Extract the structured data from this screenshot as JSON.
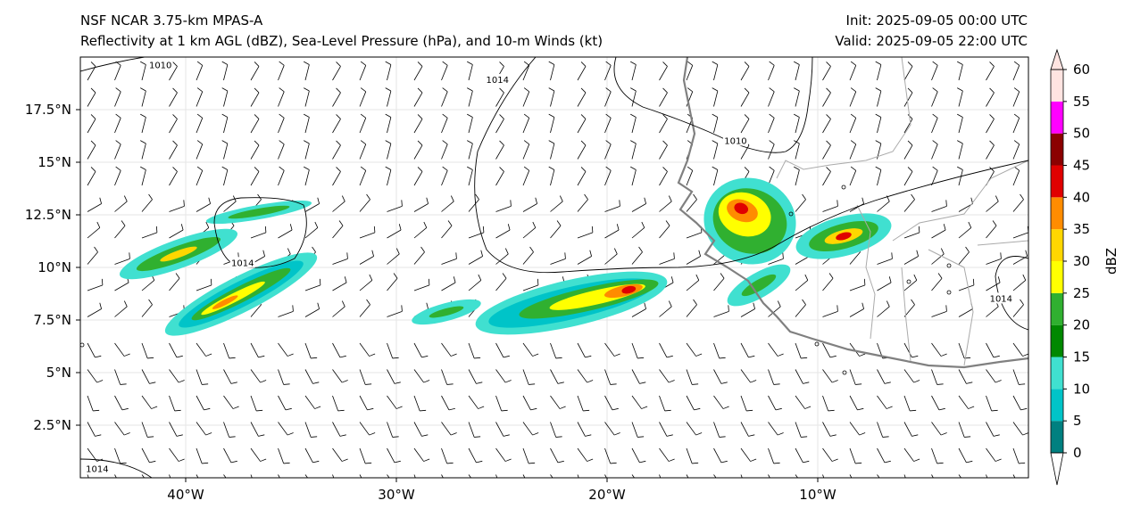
{
  "header": {
    "model": "NSF NCAR 3.75-km MPAS-A",
    "fields": "Reflectivity at 1 km AGL (dBZ), Sea-Level Pressure (hPa), and 10-m Winds (kt)",
    "init": "Init: 2025-09-05 00:00 UTC",
    "valid": "Valid: 2025-09-05 22:00 UTC"
  },
  "map": {
    "lon_range": [
      -45,
      0
    ],
    "lat_range": [
      0,
      20
    ],
    "lon_ticks": [
      {
        "value": -40,
        "label": "40°W"
      },
      {
        "value": -30,
        "label": "30°W"
      },
      {
        "value": -20,
        "label": "20°W"
      },
      {
        "value": -10,
        "label": "10°W"
      }
    ],
    "lat_ticks": [
      {
        "value": 17.5,
        "label": "17.5°N"
      },
      {
        "value": 15,
        "label": "15°N"
      },
      {
        "value": 12.5,
        "label": "12.5°N"
      },
      {
        "value": 10,
        "label": "10°N"
      },
      {
        "value": 7.5,
        "label": "7.5°N"
      },
      {
        "value": 5,
        "label": "5°N"
      },
      {
        "value": 2.5,
        "label": "2.5°N"
      }
    ],
    "isobars": [
      {
        "label": "1010",
        "lon": -41.2,
        "lat": 19.6
      },
      {
        "label": "1014",
        "lon": -25.2,
        "lat": 18.9
      },
      {
        "label": "1010",
        "lon": -13.9,
        "lat": 16.0
      },
      {
        "label": "1014",
        "lon": -37.3,
        "lat": 10.2
      },
      {
        "label": "1014",
        "lon": -1.3,
        "lat": 8.5
      },
      {
        "label": "1014",
        "lon": -44.2,
        "lat": 0.4
      }
    ]
  },
  "colorbar": {
    "label": "dBZ",
    "levels": [
      "0",
      "5",
      "10",
      "15",
      "20",
      "25",
      "30",
      "35",
      "40",
      "45",
      "50",
      "55",
      "60"
    ],
    "colors": [
      "#008080",
      "#00c4c8",
      "#40e0d0",
      "#008800",
      "#30b030",
      "#ffff00",
      "#ffd700",
      "#ff8c00",
      "#e00000",
      "#8b0000",
      "#ff00ff",
      "#ffe4e1"
    ]
  }
}
